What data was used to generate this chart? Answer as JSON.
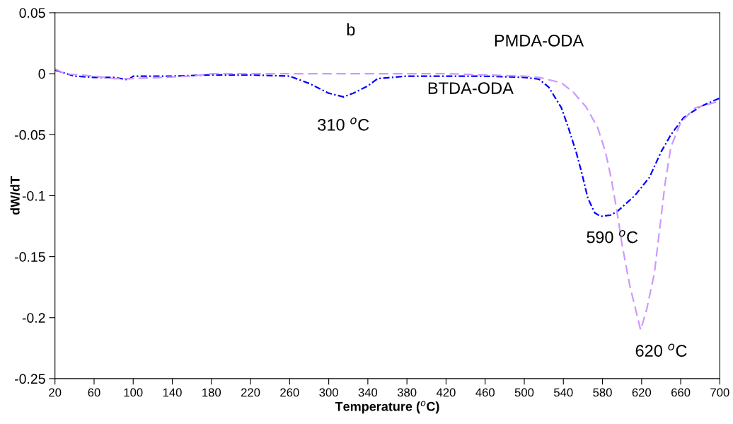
{
  "chart_data": {
    "type": "line",
    "xlabel": "Temperature ($^{o}$C)",
    "ylabel": "dW/dT",
    "xlim": [
      20,
      700
    ],
    "xticks": [
      20,
      60,
      100,
      140,
      180,
      220,
      260,
      300,
      340,
      380,
      420,
      460,
      500,
      540,
      580,
      620,
      660,
      700
    ],
    "ylim": [
      -0.25,
      0.05
    ],
    "yticks": [
      0.05,
      0,
      {
        "value": -0.05,
        "label": "-0.05"
      },
      {
        "value": -0.1,
        "label": "-0.1"
      },
      {
        "value": -0.15,
        "label": "-0.15"
      },
      {
        "value": -0.2,
        "label": "-0.2"
      },
      {
        "value": -0.25,
        "label": "-0.25"
      }
    ],
    "grid": false,
    "legend": false,
    "series": [
      {
        "name": "BTDA-ODA",
        "color": "#0000ff",
        "line_style": "dotted",
        "x": [
          20,
          40,
          60,
          80,
          95,
          100,
          140,
          180,
          220,
          260,
          280,
          300,
          315,
          325,
          340,
          350,
          380,
          420,
          460,
          500,
          515,
          525,
          538,
          545,
          553,
          559,
          565,
          572,
          578,
          588,
          595,
          613,
          628,
          640,
          650,
          663,
          680,
          700
        ],
        "values": [
          0.003,
          -0.002,
          -0.003,
          -0.003,
          -0.005,
          -0.002,
          -0.002,
          -0.001,
          -0.001,
          -0.002,
          -0.008,
          -0.016,
          -0.019,
          -0.016,
          -0.01,
          -0.004,
          -0.002,
          -0.002,
          -0.002,
          -0.003,
          -0.0045,
          -0.011,
          -0.028,
          -0.044,
          -0.064,
          -0.082,
          -0.102,
          -0.114,
          -0.117,
          -0.116,
          -0.113,
          -0.1,
          -0.085,
          -0.064,
          -0.05,
          -0.036,
          -0.027,
          -0.02
        ]
      },
      {
        "name": "PMDA-ODA",
        "color": "#cc99ff",
        "line_style": "dashed",
        "x": [
          20,
          30,
          60,
          80,
          100,
          130,
          160,
          180,
          220,
          260,
          300,
          340,
          380,
          420,
          460,
          500,
          515,
          538,
          550,
          563,
          575,
          583,
          589,
          595,
          600,
          608,
          619,
          625,
          633,
          639,
          644,
          650,
          660,
          675,
          700
        ],
        "values": [
          0.004,
          0,
          -0.002,
          -0.004,
          -0.004,
          -0.003,
          -0.002,
          0,
          0,
          0,
          0,
          0,
          0,
          0,
          -0.001,
          -0.002,
          -0.003,
          -0.0075,
          -0.015,
          -0.027,
          -0.044,
          -0.064,
          -0.086,
          -0.114,
          -0.14,
          -0.174,
          -0.21,
          -0.194,
          -0.164,
          -0.124,
          -0.09,
          -0.06,
          -0.04,
          -0.028,
          -0.0225
        ]
      }
    ],
    "annotations": [
      "b",
      {
        "text": "310 $^{o}$C",
        "x": 315,
        "y": -0.019
      },
      {
        "text": "590 $^{o}$C",
        "x": 590,
        "y": -0.116
      },
      {
        "text": "620 $^{o}$C",
        "x": 620,
        "y": -0.21
      }
    ]
  }
}
